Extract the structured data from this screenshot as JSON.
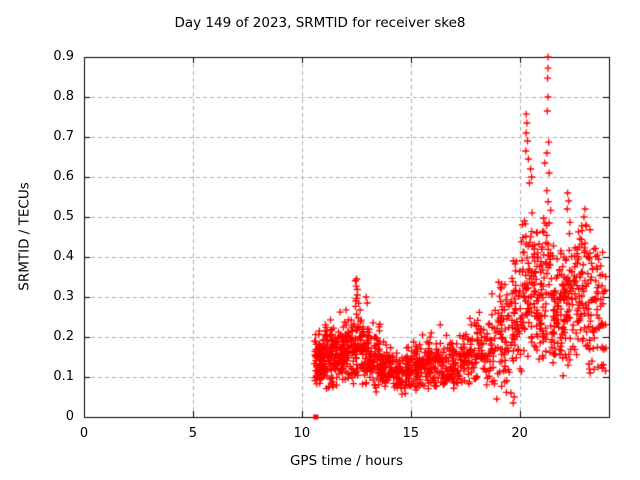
{
  "page": {
    "background": "#ffffff",
    "text_color": "#000000"
  },
  "chart_data": {
    "type": "scatter",
    "title": "Day 149 of 2023, SRMTID for receiver ske8",
    "xlabel": "GPS time / hours",
    "ylabel": "SRMTID / TECUs",
    "xlim": [
      0,
      24.1
    ],
    "ylim": [
      0,
      0.9
    ],
    "xtick_values": [
      0,
      5,
      10,
      15,
      20
    ],
    "xtick_labels": [
      "0",
      "5",
      "10",
      "15",
      "20"
    ],
    "ytick_values": [
      0,
      0.1,
      0.2,
      0.3,
      0.4,
      0.5,
      0.6,
      0.7,
      0.8,
      0.9
    ],
    "ytick_labels": [
      "0",
      "0.1",
      "0.2",
      "0.3",
      "0.4",
      "0.5",
      "0.6",
      "0.7",
      "0.8",
      "0.9"
    ],
    "grid": true,
    "grid_color": "#b0b0b0",
    "axis_color": "#000000",
    "marker": "plus",
    "marker_color": "#ff0000",
    "marker_size": 7,
    "time_range_hours": [
      10.55,
      23.95
    ],
    "zero_marker": {
      "shape": "filled-square",
      "x": 10.64,
      "y": 0
    },
    "highlight_points": [
      [
        21.3,
        0.9
      ],
      [
        21.3,
        0.872
      ],
      [
        21.28,
        0.847
      ],
      [
        21.3,
        0.8
      ],
      [
        21.27,
        0.765
      ],
      [
        20.3,
        0.757
      ],
      [
        20.33,
        0.735
      ],
      [
        20.3,
        0.71
      ],
      [
        20.36,
        0.69
      ],
      [
        20.28,
        0.665
      ],
      [
        20.4,
        0.645
      ],
      [
        21.33,
        0.687
      ],
      [
        21.25,
        0.66
      ],
      [
        21.15,
        0.635
      ],
      [
        21.35,
        0.61
      ],
      [
        20.5,
        0.62
      ],
      [
        20.55,
        0.6
      ],
      [
        20.45,
        0.585
      ],
      [
        12.52,
        0.345
      ],
      [
        12.5,
        0.327
      ],
      [
        12.55,
        0.305
      ],
      [
        12.48,
        0.29
      ],
      [
        12.95,
        0.3
      ],
      [
        13.0,
        0.285
      ],
      [
        22.2,
        0.56
      ],
      [
        22.25,
        0.54
      ],
      [
        22.18,
        0.52
      ],
      [
        23.0,
        0.52
      ],
      [
        22.95,
        0.5
      ],
      [
        23.05,
        0.48
      ],
      [
        19.7,
        0.035
      ],
      [
        19.75,
        0.05
      ],
      [
        19.6,
        0.06
      ],
      [
        18.95,
        0.045
      ]
    ],
    "cluster_model": {
      "seed": 149,
      "columns": [
        "x_start",
        "x_end",
        "count",
        "mean",
        "stddev",
        "min",
        "max"
      ],
      "segments": [
        [
          10.55,
          10.75,
          25,
          0.135,
          0.03,
          0.08,
          0.21
        ],
        [
          10.75,
          11.05,
          60,
          0.15,
          0.035,
          0.08,
          0.24
        ],
        [
          11.05,
          11.5,
          70,
          0.155,
          0.04,
          0.06,
          0.26
        ],
        [
          11.5,
          12.0,
          75,
          0.16,
          0.04,
          0.07,
          0.27
        ],
        [
          12.0,
          12.45,
          60,
          0.17,
          0.05,
          0.08,
          0.3
        ],
        [
          12.45,
          12.7,
          35,
          0.19,
          0.06,
          0.09,
          0.345
        ],
        [
          12.7,
          13.1,
          55,
          0.16,
          0.045,
          0.07,
          0.3
        ],
        [
          13.1,
          13.6,
          60,
          0.14,
          0.035,
          0.06,
          0.25
        ],
        [
          13.6,
          14.3,
          80,
          0.12,
          0.025,
          0.06,
          0.2
        ],
        [
          14.3,
          15.0,
          80,
          0.11,
          0.025,
          0.055,
          0.19
        ],
        [
          15.0,
          15.7,
          75,
          0.125,
          0.033,
          0.06,
          0.26
        ],
        [
          15.7,
          16.4,
          75,
          0.13,
          0.033,
          0.06,
          0.25
        ],
        [
          16.4,
          17.2,
          75,
          0.13,
          0.03,
          0.07,
          0.23
        ],
        [
          17.2,
          18.0,
          70,
          0.15,
          0.04,
          0.07,
          0.28
        ],
        [
          18.0,
          18.8,
          70,
          0.175,
          0.05,
          0.05,
          0.33
        ],
        [
          18.8,
          19.5,
          65,
          0.21,
          0.065,
          0.03,
          0.4
        ],
        [
          19.5,
          20.1,
          60,
          0.26,
          0.08,
          0.05,
          0.48
        ],
        [
          20.1,
          20.6,
          65,
          0.33,
          0.1,
          0.12,
          0.62
        ],
        [
          20.6,
          21.0,
          55,
          0.31,
          0.09,
          0.12,
          0.55
        ],
        [
          21.0,
          21.45,
          55,
          0.36,
          0.11,
          0.13,
          0.66
        ],
        [
          21.45,
          22.0,
          70,
          0.27,
          0.08,
          0.1,
          0.48
        ],
        [
          22.0,
          22.5,
          65,
          0.28,
          0.085,
          0.1,
          0.56
        ],
        [
          22.5,
          23.1,
          70,
          0.3,
          0.085,
          0.11,
          0.52
        ],
        [
          23.1,
          23.6,
          55,
          0.28,
          0.09,
          0.1,
          0.5
        ],
        [
          23.6,
          23.95,
          30,
          0.24,
          0.09,
          0.1,
          0.42
        ]
      ]
    }
  }
}
